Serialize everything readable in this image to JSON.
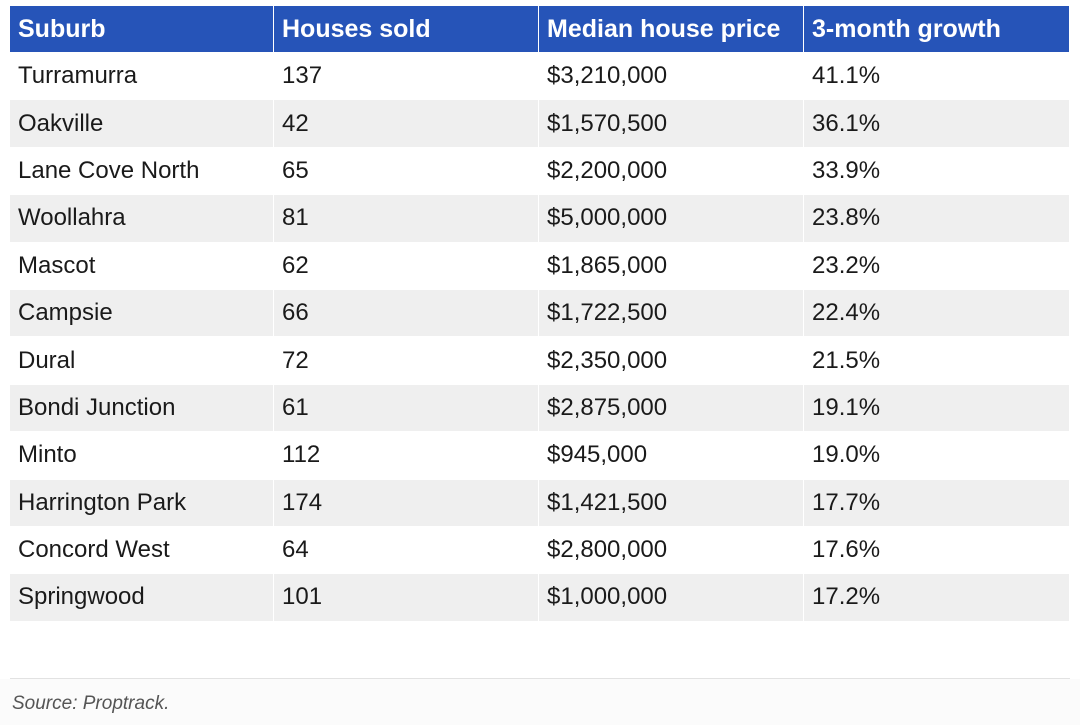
{
  "table": {
    "headers": [
      "Suburb",
      "Houses sold",
      "Median house price",
      "3-month growth"
    ],
    "rows": [
      [
        "Turramurra",
        "137",
        "$3,210,000",
        "41.1%"
      ],
      [
        "Oakville",
        "42",
        "$1,570,500",
        "36.1%"
      ],
      [
        "Lane Cove North",
        "65",
        "$2,200,000",
        "33.9%"
      ],
      [
        "Woollahra",
        "81",
        "$5,000,000",
        "23.8%"
      ],
      [
        "Mascot",
        "62",
        "$1,865,000",
        "23.2%"
      ],
      [
        "Campsie",
        "66",
        "$1,722,500",
        "22.4%"
      ],
      [
        "Dural",
        "72",
        "$2,350,000",
        "21.5%"
      ],
      [
        "Bondi Junction",
        "61",
        "$2,875,000",
        "19.1%"
      ],
      [
        "Minto",
        "112",
        "$945,000",
        "19.0%"
      ],
      [
        "Harrington Park",
        "174",
        "$1,421,500",
        "17.7%"
      ],
      [
        "Concord West",
        "64",
        "$2,800,000",
        "17.6%"
      ],
      [
        "Springwood",
        "101",
        "$1,000,000",
        "17.2%"
      ]
    ]
  },
  "footer": {
    "source": "Source: Proptrack."
  },
  "colors": {
    "header_bg": "#2654b8",
    "header_text": "#ffffff",
    "row_alt_bg": "#efefef"
  }
}
